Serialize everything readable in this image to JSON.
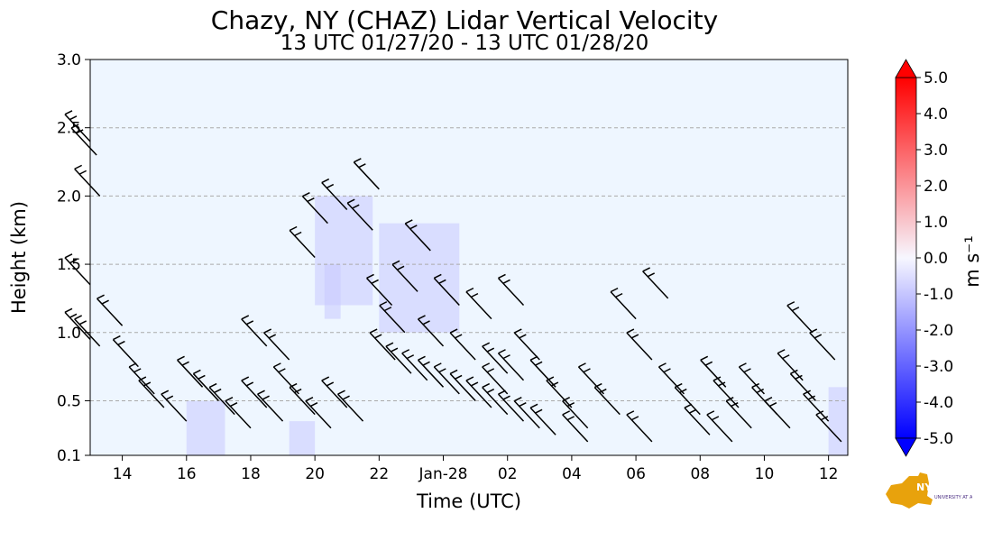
{
  "chart_data": {
    "type": "heatmap",
    "title": "Chazy, NY (CHAZ) Lidar Vertical Velocity",
    "subtitle": "13 UTC 01/27/20 - 13 UTC 01/28/20",
    "xlabel": "Time (UTC)",
    "ylabel": "Height (km)",
    "x_ticks": [
      "14",
      "16",
      "18",
      "20",
      "22",
      "Jan-28",
      "02",
      "04",
      "06",
      "08",
      "10",
      "12"
    ],
    "x_tick_hours": [
      14,
      16,
      18,
      20,
      22,
      24,
      26,
      28,
      30,
      32,
      34,
      36
    ],
    "xlim_hours": [
      13,
      36.6
    ],
    "y_ticks": [
      "0.1",
      "0.5",
      "1.0",
      "1.5",
      "2.0",
      "2.5",
      "3.0"
    ],
    "y_tick_values": [
      0.1,
      0.5,
      1.0,
      1.5,
      2.0,
      2.5,
      3.0
    ],
    "ylim": [
      0.1,
      3.0
    ],
    "grid": "horizontal dashed",
    "colorbar": {
      "label": "m s⁻¹",
      "ticks": [
        "5.0",
        "4.0",
        "3.0",
        "2.0",
        "1.0",
        "0.0",
        "-1.0",
        "-2.0",
        "-3.0",
        "-4.0",
        "-5.0"
      ],
      "range": [
        -5.0,
        5.0
      ],
      "colors": {
        "max": "#ff0000",
        "zero": "#f7f7ff",
        "min": "#0000ff"
      }
    },
    "background_color": "#eef6ff",
    "barbs": [
      {
        "t": 13.0,
        "h": 2.4
      },
      {
        "t": 13.2,
        "h": 2.3
      },
      {
        "t": 13.3,
        "h": 2.0
      },
      {
        "t": 13.0,
        "h": 1.35
      },
      {
        "t": 14.0,
        "h": 1.05
      },
      {
        "t": 13.0,
        "h": 0.95
      },
      {
        "t": 13.3,
        "h": 0.9
      },
      {
        "t": 14.5,
        "h": 0.75
      },
      {
        "t": 15.0,
        "h": 0.55
      },
      {
        "t": 15.3,
        "h": 0.45
      },
      {
        "t": 16.0,
        "h": 0.35
      },
      {
        "t": 16.5,
        "h": 0.6
      },
      {
        "t": 17.0,
        "h": 0.5
      },
      {
        "t": 17.5,
        "h": 0.4
      },
      {
        "t": 18.0,
        "h": 0.3
      },
      {
        "t": 18.5,
        "h": 0.45
      },
      {
        "t": 19.0,
        "h": 0.35
      },
      {
        "t": 19.5,
        "h": 0.55
      },
      {
        "t": 20.0,
        "h": 0.4
      },
      {
        "t": 20.5,
        "h": 0.3
      },
      {
        "t": 21.0,
        "h": 0.45
      },
      {
        "t": 21.5,
        "h": 0.35
      },
      {
        "t": 18.5,
        "h": 0.9
      },
      {
        "t": 19.2,
        "h": 0.8
      },
      {
        "t": 20.0,
        "h": 1.55
      },
      {
        "t": 20.4,
        "h": 1.8
      },
      {
        "t": 21.0,
        "h": 1.9
      },
      {
        "t": 21.8,
        "h": 1.75
      },
      {
        "t": 22.0,
        "h": 2.05
      },
      {
        "t": 22.4,
        "h": 1.2
      },
      {
        "t": 22.8,
        "h": 1.0
      },
      {
        "t": 23.2,
        "h": 1.3
      },
      {
        "t": 23.6,
        "h": 1.6
      },
      {
        "t": 24.0,
        "h": 0.9
      },
      {
        "t": 24.5,
        "h": 1.2
      },
      {
        "t": 25.0,
        "h": 0.8
      },
      {
        "t": 25.5,
        "h": 1.1
      },
      {
        "t": 26.0,
        "h": 0.7
      },
      {
        "t": 26.5,
        "h": 1.2
      },
      {
        "t": 22.5,
        "h": 0.8
      },
      {
        "t": 23.0,
        "h": 0.7
      },
      {
        "t": 23.5,
        "h": 0.65
      },
      {
        "t": 24.0,
        "h": 0.6
      },
      {
        "t": 24.5,
        "h": 0.55
      },
      {
        "t": 25.0,
        "h": 0.5
      },
      {
        "t": 25.5,
        "h": 0.45
      },
      {
        "t": 26.0,
        "h": 0.4
      },
      {
        "t": 26.5,
        "h": 0.35
      },
      {
        "t": 27.0,
        "h": 0.3
      },
      {
        "t": 26.0,
        "h": 0.55
      },
      {
        "t": 26.5,
        "h": 0.65
      },
      {
        "t": 27.0,
        "h": 0.8
      },
      {
        "t": 27.5,
        "h": 0.6
      },
      {
        "t": 28.0,
        "h": 0.45
      },
      {
        "t": 28.5,
        "h": 0.3
      },
      {
        "t": 29.0,
        "h": 0.55
      },
      {
        "t": 29.5,
        "h": 0.4
      },
      {
        "t": 30.0,
        "h": 1.1
      },
      {
        "t": 30.5,
        "h": 0.8
      },
      {
        "t": 31.0,
        "h": 1.25
      },
      {
        "t": 31.5,
        "h": 0.55
      },
      {
        "t": 32.0,
        "h": 0.4
      },
      {
        "t": 32.3,
        "h": 0.25
      },
      {
        "t": 32.8,
        "h": 0.6
      },
      {
        "t": 33.2,
        "h": 0.45
      },
      {
        "t": 33.6,
        "h": 0.3
      },
      {
        "t": 34.0,
        "h": 0.55
      },
      {
        "t": 34.4,
        "h": 0.4
      },
      {
        "t": 34.8,
        "h": 0.3
      },
      {
        "t": 35.2,
        "h": 0.65
      },
      {
        "t": 35.6,
        "h": 0.5
      },
      {
        "t": 36.0,
        "h": 0.35
      },
      {
        "t": 35.5,
        "h": 1.0
      },
      {
        "t": 36.2,
        "h": 0.8
      },
      {
        "t": 27.5,
        "h": 0.25
      },
      {
        "t": 28.5,
        "h": 0.2
      },
      {
        "t": 30.5,
        "h": 0.2
      },
      {
        "t": 33.0,
        "h": 0.2
      },
      {
        "t": 36.4,
        "h": 0.2
      }
    ],
    "updraft_patches": [
      {
        "t0": 16.0,
        "t1": 17.2,
        "h0": 0.1,
        "h1": 0.5
      },
      {
        "t0": 19.2,
        "t1": 20.0,
        "h0": 0.1,
        "h1": 0.35
      },
      {
        "t0": 20.0,
        "t1": 21.8,
        "h0": 1.2,
        "h1": 2.0
      },
      {
        "t0": 22.0,
        "t1": 24.5,
        "h0": 1.0,
        "h1": 1.8
      },
      {
        "t0": 20.3,
        "t1": 20.8,
        "h0": 1.1,
        "h1": 1.5
      },
      {
        "t0": 36.0,
        "t1": 36.6,
        "h0": 0.1,
        "h1": 0.6
      }
    ]
  },
  "logo": {
    "text": "NYS Mesonet",
    "subtext": "UNIVERSITY AT ALBANY",
    "color": "#4b2e83",
    "accent": "#e8a20c"
  }
}
